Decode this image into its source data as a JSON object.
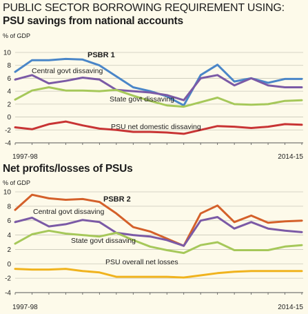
{
  "page_title": "PUBLIC SECTOR BORROWING REQUIREMENT USING:",
  "chart_data": [
    {
      "type": "line",
      "title": "PSU savings from national accounts",
      "unit": "% of GDP",
      "ylim": [
        -4,
        10
      ],
      "yticks": [
        "10",
        "8",
        "6",
        "4",
        "2",
        "0",
        "-2",
        "-4"
      ],
      "x_start_label": "1997-98",
      "x_end_label": "2014-15",
      "grid": true,
      "series": [
        {
          "name": "PSBR 1",
          "color": "#4a86c8",
          "values": [
            7.0,
            8.8,
            8.8,
            9.0,
            8.9,
            8.0,
            6.3,
            4.6,
            4.0,
            3.2,
            1.8,
            6.5,
            8.1,
            5.5,
            6.0,
            5.3,
            5.9,
            5.9
          ]
        },
        {
          "name": "Central govt dissaving",
          "color": "#7b5aa6",
          "values": [
            5.8,
            6.5,
            5.2,
            5.6,
            6.1,
            5.8,
            4.2,
            4.0,
            3.8,
            3.4,
            2.6,
            6.0,
            6.5,
            4.9,
            6.0,
            4.9,
            4.6,
            4.6
          ]
        },
        {
          "name": "State govt dissaving",
          "color": "#a6c85a",
          "values": [
            2.7,
            4.1,
            4.6,
            4.1,
            4.1,
            4.0,
            4.2,
            3.3,
            2.5,
            1.8,
            1.6,
            2.3,
            3.0,
            2.0,
            1.9,
            2.0,
            2.5,
            2.6
          ]
        },
        {
          "name": "PSU net domestic dissaving",
          "color": "#c83434",
          "values": [
            -1.6,
            -1.9,
            -1.1,
            -0.7,
            -1.3,
            -1.8,
            -2.0,
            -2.3,
            -2.3,
            -2.4,
            -2.6,
            -2.0,
            -1.4,
            -1.5,
            -1.7,
            -1.5,
            -1.1,
            -1.2
          ]
        }
      ]
    },
    {
      "type": "line",
      "title": "Net profits/losses of PSUs",
      "unit": "% of GDP",
      "ylim": [
        -4,
        10
      ],
      "yticks": [
        "10",
        "8",
        "6",
        "4",
        "2",
        "0",
        "-2",
        "-4"
      ],
      "x_start_label": "1997-98",
      "x_end_label": "2014-15",
      "grid": true,
      "series": [
        {
          "name": "PSBR 2",
          "color": "#d4602a",
          "values": [
            7.5,
            9.6,
            9.1,
            8.9,
            9.0,
            8.6,
            7.0,
            5.1,
            4.5,
            3.5,
            2.5,
            7.0,
            8.1,
            5.8,
            6.7,
            5.7,
            5.9,
            6.0
          ]
        },
        {
          "name": "Central govt dissaving",
          "color": "#7b5aa6",
          "values": [
            5.8,
            6.4,
            5.2,
            5.5,
            6.1,
            5.8,
            4.3,
            4.0,
            3.8,
            3.3,
            2.5,
            6.0,
            6.5,
            4.9,
            5.8,
            4.9,
            4.6,
            4.4
          ]
        },
        {
          "name": "State govt dissaving",
          "color": "#a6c85a",
          "values": [
            2.8,
            4.1,
            4.6,
            4.2,
            4.0,
            3.8,
            4.3,
            3.3,
            2.4,
            1.9,
            1.5,
            2.6,
            3.0,
            1.9,
            1.9,
            1.9,
            2.4,
            2.6
          ]
        },
        {
          "name": "PSU overall net losses",
          "color": "#f0b31e",
          "values": [
            -0.7,
            -0.8,
            -0.8,
            -0.7,
            -1.0,
            -1.2,
            -1.8,
            -1.8,
            -1.8,
            -1.8,
            -1.9,
            -1.6,
            -1.3,
            -1.1,
            -1.0,
            -1.0,
            -1.0,
            -1.0
          ]
        }
      ]
    }
  ]
}
